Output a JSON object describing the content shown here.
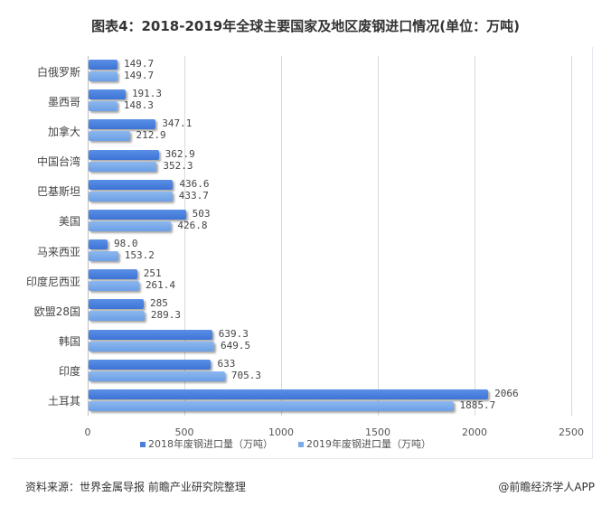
{
  "title": "图表4：2018-2019年全球主要国家及地区废钢进口情况(单位：万吨)",
  "legend": {
    "s2018": "2018年废钢进口量（万吨）",
    "s2019": "2019年废钢进口量（万吨）"
  },
  "source": "资料来源：世界金属导报 前瞻产业研究院整理",
  "credit": "@前瞻经济学人APP",
  "colors": {
    "s2018": "#4a80dc",
    "s2019": "#7aaae9"
  },
  "chart_data": {
    "type": "bar",
    "orientation": "horizontal",
    "title": "图表4：2018-2019年全球主要国家及地区废钢进口情况(单位：万吨)",
    "xlabel": "",
    "ylabel": "",
    "xlim": [
      0,
      2500
    ],
    "xticks": [
      "0",
      "500",
      "1000",
      "1500",
      "2000",
      "2500"
    ],
    "grid": true,
    "legend_position": "bottom",
    "categories": [
      "白俄罗斯",
      "墨西哥",
      "加拿大",
      "中国台湾",
      "巴基斯坦",
      "美国",
      "马来西亚",
      "印度尼西亚",
      "欧盟28国",
      "韩国",
      "印度",
      "土耳其"
    ],
    "series": [
      {
        "name": "2018年废钢进口量（万吨）",
        "values": [
          149.7,
          191.3,
          347.1,
          362.9,
          436.6,
          503,
          98.0,
          251,
          285,
          639.3,
          633,
          2066
        ],
        "labels": [
          "149.7",
          "191.3",
          "347.1",
          "362.9",
          "436.6",
          "503",
          "98.0",
          "251",
          "285",
          "639.3",
          "633",
          "2066"
        ]
      },
      {
        "name": "2019年废钢进口量（万吨）",
        "values": [
          149.7,
          148.3,
          212.9,
          352.3,
          433.7,
          426.8,
          153.2,
          261.4,
          289.3,
          649.5,
          705.3,
          1885.7
        ],
        "labels": [
          "149.7",
          "148.3",
          "212.9",
          "352.3",
          "433.7",
          "426.8",
          "153.2",
          "261.4",
          "289.3",
          "649.5",
          "705.3",
          "1885.7"
        ]
      }
    ]
  }
}
